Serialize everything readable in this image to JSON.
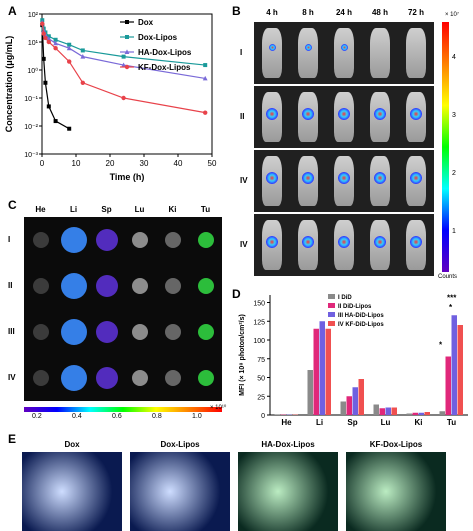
{
  "panels": {
    "a": "A",
    "b": "B",
    "c": "C",
    "d": "D",
    "e": "E"
  },
  "colors": {
    "dox": "#000000",
    "dox_lipos": "#1a9a9a",
    "ha_dox_lipos": "#7a6ad8",
    "kf_dox_lipos": "#e8424a",
    "did": "#8a8a8a",
    "did_lipos": "#e0287a",
    "ha_did_lipos": "#7060e0",
    "kf_did_lipos": "#f05050"
  },
  "chart_data": [
    {
      "type": "line",
      "panel": "A",
      "xlabel": "Time (h)",
      "ylabel": "Concentration (μg/mL)",
      "x_ticks": [
        "0",
        "10",
        "20",
        "30",
        "40",
        "50"
      ],
      "y_ticks": [
        "10⁻³",
        "10⁻²",
        "10⁻¹",
        "10⁰",
        "10¹",
        "10²"
      ],
      "xlim": [
        0,
        50
      ],
      "ylim_log10": [
        -3,
        2
      ],
      "scale": "log",
      "series": [
        {
          "name": "Dox",
          "color_key": "dox",
          "marker": "square",
          "x": [
            0.08,
            0.5,
            1,
            2,
            4,
            8
          ],
          "y": [
            40,
            2.5,
            0.35,
            0.05,
            0.015,
            0.008
          ]
        },
        {
          "name": "Dox-Lipos",
          "color_key": "dox_lipos",
          "marker": "square",
          "x": [
            0.08,
            0.5,
            1,
            2,
            4,
            8,
            12,
            24,
            48
          ],
          "y": [
            60,
            30,
            22,
            16,
            12,
            8,
            5,
            3,
            1.5
          ]
        },
        {
          "name": "HA-Dox-Lipos",
          "color_key": "ha_dox_lipos",
          "marker": "triangle",
          "x": [
            0.08,
            0.5,
            1,
            2,
            4,
            8,
            12,
            24,
            48
          ],
          "y": [
            50,
            25,
            18,
            13,
            9,
            6,
            3,
            1.5,
            0.5
          ]
        },
        {
          "name": "KF-Dox-Lipos",
          "color_key": "kf_dox_lipos",
          "marker": "circle",
          "x": [
            0.08,
            0.5,
            1,
            2,
            4,
            8,
            12,
            24,
            48
          ],
          "y": [
            45,
            20,
            14,
            10,
            6,
            2,
            0.35,
            0.1,
            0.03
          ]
        }
      ]
    },
    {
      "type": "bar",
      "panel": "D",
      "ylabel": "MFI (× 10⁸ photon/cm²/s)",
      "categories": [
        "He",
        "Li",
        "Sp",
        "Lu",
        "Ki",
        "Tu"
      ],
      "y_ticks": [
        "0",
        "25",
        "50",
        "75",
        "100",
        "125",
        "150"
      ],
      "ylim": [
        0,
        160
      ],
      "series": [
        {
          "name": "I DiD",
          "color_key": "did",
          "values": [
            0.5,
            60,
            18,
            14,
            2,
            5
          ]
        },
        {
          "name": "II DiD-Lipos",
          "color_key": "did_lipos",
          "values": [
            0.5,
            115,
            25,
            9,
            3,
            78
          ]
        },
        {
          "name": "III HA-DiD-Lipos",
          "color_key": "ha_did_lipos",
          "values": [
            0.5,
            125,
            37,
            10,
            3,
            133
          ]
        },
        {
          "name": "IV KF-DiD-Lipos",
          "color_key": "kf_did_lipos",
          "values": [
            0.5,
            115,
            48,
            10,
            4,
            120
          ]
        }
      ],
      "annotations": [
        "*",
        "*",
        "***"
      ]
    }
  ],
  "panel_b": {
    "times": [
      "4 h",
      "8 h",
      "24 h",
      "48 h",
      "72 h"
    ],
    "rows": [
      "I",
      "II",
      "IV",
      "IV"
    ],
    "colorbar_ticks": [
      "4",
      "3",
      "2",
      "1"
    ],
    "colorbar_exp": "× 10⁷",
    "colorbar_unit": "Counts"
  },
  "panel_c": {
    "organs": [
      "He",
      "Li",
      "Sp",
      "Lu",
      "Ki",
      "Tu"
    ],
    "rows": [
      "I",
      "II",
      "III",
      "IV"
    ],
    "colorbar_ticks": [
      "0.2",
      "0.4",
      "0.6",
      "0.8",
      "1.0"
    ],
    "colorbar_exp": "× 10¹⁰"
  },
  "panel_e": {
    "titles": [
      "Dox",
      "Dox-Lipos",
      "HA-Dox-Lipos",
      "KF-Dox-Lipos"
    ]
  }
}
